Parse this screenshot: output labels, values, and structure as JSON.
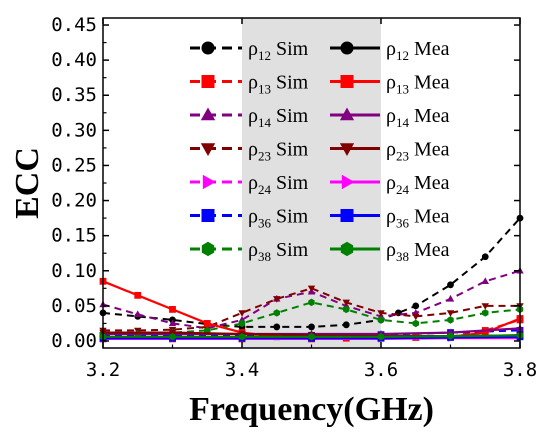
{
  "chart_data": {
    "type": "line",
    "xlabel": "Frequency(GHz)",
    "ylabel": "ECC",
    "xlim": [
      3.2,
      3.8
    ],
    "ylim": [
      -0.01,
      0.46
    ],
    "xticks": [
      "3.2",
      "3.4",
      "3.6",
      "3.8"
    ],
    "yticks": [
      "0.00",
      "0.05",
      "0.10",
      "0.15",
      "0.20",
      "0.25",
      "0.30",
      "0.35",
      "0.40",
      "0.45"
    ],
    "highlight_band": {
      "from": 3.4,
      "to": 3.6,
      "color": "#e0e0e0"
    },
    "grid": false,
    "legend": {
      "position": "top",
      "columns": 2
    },
    "series": [
      {
        "name": "ρ12 Sim",
        "legend_base": "ρ",
        "legend_sub": "12",
        "legend_suffix": " Sim",
        "color": "#000000",
        "marker": "circle",
        "dash": true,
        "x": [
          3.2,
          3.25,
          3.3,
          3.35,
          3.4,
          3.45,
          3.5,
          3.55,
          3.6,
          3.625,
          3.65,
          3.7,
          3.75,
          3.8
        ],
        "y": [
          0.04,
          0.035,
          0.03,
          0.024,
          0.02,
          0.02,
          0.02,
          0.023,
          0.03,
          0.04,
          0.05,
          0.08,
          0.12,
          0.175
        ]
      },
      {
        "name": "ρ13 Sim",
        "legend_base": "ρ",
        "legend_sub": "13",
        "legend_suffix": " Sim",
        "color": "#ff0000",
        "marker": "square",
        "dash": true,
        "x": [
          3.2,
          3.3,
          3.4,
          3.5,
          3.6,
          3.7,
          3.75,
          3.8
        ],
        "y": [
          0.003,
          0.003,
          0.003,
          0.003,
          0.004,
          0.006,
          0.015,
          0.03
        ]
      },
      {
        "name": "ρ14 Sim",
        "legend_base": "ρ",
        "legend_sub": "14",
        "legend_suffix": " Sim",
        "color": "#800080",
        "marker": "triangle-up",
        "dash": true,
        "x": [
          3.2,
          3.25,
          3.3,
          3.35,
          3.4,
          3.45,
          3.5,
          3.55,
          3.6,
          3.65,
          3.7,
          3.75,
          3.8
        ],
        "y": [
          0.052,
          0.038,
          0.025,
          0.018,
          0.03,
          0.06,
          0.07,
          0.05,
          0.035,
          0.04,
          0.06,
          0.085,
          0.1
        ]
      },
      {
        "name": "ρ23 Sim",
        "legend_base": "ρ",
        "legend_sub": "23",
        "legend_suffix": " Sim",
        "color": "#800000",
        "marker": "triangle-down",
        "dash": true,
        "x": [
          3.2,
          3.25,
          3.3,
          3.35,
          3.4,
          3.45,
          3.5,
          3.55,
          3.6,
          3.65,
          3.7,
          3.75,
          3.8
        ],
        "y": [
          0.015,
          0.015,
          0.016,
          0.02,
          0.04,
          0.06,
          0.075,
          0.055,
          0.04,
          0.035,
          0.04,
          0.05,
          0.05
        ]
      },
      {
        "name": "ρ24 Sim",
        "legend_base": "ρ",
        "legend_sub": "24",
        "legend_suffix": " Sim",
        "color": "#ff00ff",
        "marker": "triangle-right",
        "dash": true,
        "x": [
          3.2,
          3.3,
          3.4,
          3.5,
          3.6,
          3.7,
          3.8
        ],
        "y": [
          0.005,
          0.005,
          0.006,
          0.008,
          0.008,
          0.007,
          0.005
        ]
      },
      {
        "name": "ρ36 Sim",
        "legend_base": "ρ",
        "legend_sub": "36",
        "legend_suffix": " Sim",
        "color": "#0000ff",
        "marker": "square",
        "dash": true,
        "x": [
          3.2,
          3.3,
          3.4,
          3.5,
          3.6,
          3.7,
          3.8
        ],
        "y": [
          0.008,
          0.008,
          0.008,
          0.008,
          0.009,
          0.012,
          0.015
        ]
      },
      {
        "name": "ρ38 Sim",
        "legend_base": "ρ",
        "legend_sub": "38",
        "legend_suffix": " Sim",
        "color": "#008000",
        "marker": "hexagon",
        "dash": true,
        "x": [
          3.2,
          3.25,
          3.3,
          3.35,
          3.4,
          3.45,
          3.5,
          3.55,
          3.6,
          3.65,
          3.7,
          3.75,
          3.8
        ],
        "y": [
          0.01,
          0.01,
          0.012,
          0.015,
          0.025,
          0.04,
          0.055,
          0.045,
          0.03,
          0.025,
          0.03,
          0.04,
          0.045
        ]
      },
      {
        "name": "ρ12 Mea",
        "legend_base": "ρ",
        "legend_sub": "12",
        "legend_suffix": " Mea",
        "color": "#000000",
        "marker": "circle",
        "dash": false,
        "x": [
          3.2,
          3.3,
          3.4,
          3.5,
          3.6,
          3.7,
          3.8
        ],
        "y": [
          0.005,
          0.005,
          0.005,
          0.005,
          0.005,
          0.006,
          0.008
        ]
      },
      {
        "name": "ρ13 Mea",
        "legend_base": "ρ",
        "legend_sub": "13",
        "legend_suffix": " Mea",
        "color": "#ff0000",
        "marker": "square",
        "dash": false,
        "x": [
          3.2,
          3.25,
          3.3,
          3.35,
          3.4,
          3.45,
          3.5,
          3.55,
          3.6,
          3.65,
          3.7,
          3.75,
          3.8
        ],
        "y": [
          0.085,
          0.065,
          0.045,
          0.025,
          0.012,
          0.006,
          0.004,
          0.004,
          0.004,
          0.005,
          0.006,
          0.012,
          0.032
        ]
      },
      {
        "name": "ρ14 Mea",
        "legend_base": "ρ",
        "legend_sub": "14",
        "legend_suffix": " Mea",
        "color": "#800080",
        "marker": "triangle-up",
        "dash": false,
        "x": [
          3.2,
          3.3,
          3.4,
          3.5,
          3.6,
          3.7,
          3.8
        ],
        "y": [
          0.01,
          0.01,
          0.01,
          0.01,
          0.01,
          0.012,
          0.018
        ]
      },
      {
        "name": "ρ23 Mea",
        "legend_base": "ρ",
        "legend_sub": "23",
        "legend_suffix": " Mea",
        "color": "#800000",
        "marker": "triangle-down",
        "dash": false,
        "x": [
          3.2,
          3.3,
          3.4,
          3.5,
          3.6,
          3.7,
          3.8
        ],
        "y": [
          0.012,
          0.012,
          0.01,
          0.008,
          0.007,
          0.007,
          0.008
        ]
      },
      {
        "name": "ρ24 Mea",
        "legend_base": "ρ",
        "legend_sub": "24",
        "legend_suffix": " Mea",
        "color": "#ff00ff",
        "marker": "triangle-right",
        "dash": false,
        "x": [
          3.2,
          3.3,
          3.4,
          3.5,
          3.6,
          3.7,
          3.8
        ],
        "y": [
          0.003,
          0.003,
          0.003,
          0.003,
          0.003,
          0.004,
          0.004
        ]
      },
      {
        "name": "ρ36 Mea",
        "legend_base": "ρ",
        "legend_sub": "36",
        "legend_suffix": " Mea",
        "color": "#0000ff",
        "marker": "square",
        "dash": false,
        "x": [
          3.2,
          3.3,
          3.4,
          3.5,
          3.6,
          3.7,
          3.8
        ],
        "y": [
          0.004,
          0.004,
          0.004,
          0.004,
          0.004,
          0.005,
          0.006
        ]
      },
      {
        "name": "ρ38 Mea",
        "legend_base": "ρ",
        "legend_sub": "38",
        "legend_suffix": " Mea",
        "color": "#008000",
        "marker": "hexagon",
        "dash": false,
        "x": [
          3.2,
          3.3,
          3.4,
          3.5,
          3.6,
          3.7,
          3.8
        ],
        "y": [
          0.006,
          0.006,
          0.006,
          0.006,
          0.006,
          0.007,
          0.008
        ]
      }
    ]
  }
}
